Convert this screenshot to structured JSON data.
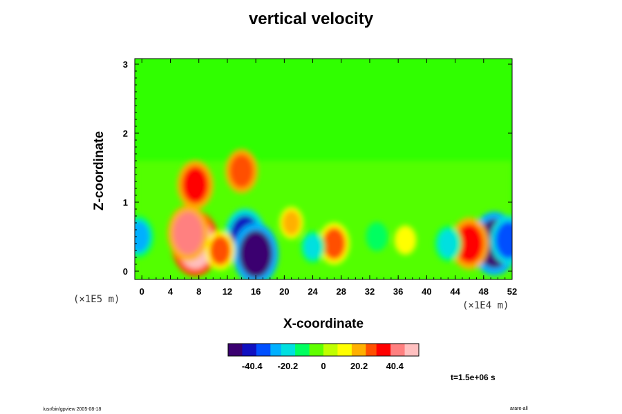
{
  "chart_data": {
    "type": "heatmap",
    "title": "vertical velocity",
    "xlabel": "X-coordinate",
    "ylabel": "Z-coordinate",
    "x_ticks": [
      "0",
      "4",
      "8",
      "12",
      "16",
      "20",
      "24",
      "28",
      "32",
      "36",
      "40",
      "44",
      "48",
      "52"
    ],
    "y_ticks": [
      "0",
      "1",
      "2",
      "3"
    ],
    "x_scale_label": "(×1E4 m)",
    "y_scale_label": "(×1E5 m)",
    "xlim": [
      -1,
      52
    ],
    "ylim": [
      -0.12,
      3.08
    ],
    "colorbar": {
      "ticks": [
        "-40.4",
        "-20.2",
        "0",
        "20.2",
        "40.4"
      ],
      "range": [
        -54,
        54
      ],
      "colors": [
        "#3b0070",
        "#1010c0",
        "#0050ff",
        "#00b0ff",
        "#00e0e0",
        "#00ff60",
        "#60ff00",
        "#c0ff00",
        "#ffff00",
        "#ffb000",
        "#ff5000",
        "#ff0000",
        "#ff8080",
        "#ffc0c0"
      ]
    },
    "annotation": "t=1.5e+06 s",
    "features": [
      {
        "x": 7.5,
        "z": 0.4,
        "value": 52
      },
      {
        "x": 6.5,
        "z": 0.55,
        "value": 42
      },
      {
        "x": 14.5,
        "z": 0.5,
        "value": -42
      },
      {
        "x": 16,
        "z": 0.25,
        "value": -48
      },
      {
        "x": 7.5,
        "z": 1.25,
        "value": 35
      },
      {
        "x": 14,
        "z": 1.45,
        "value": 30
      },
      {
        "x": 49.5,
        "z": 0.4,
        "value": -50
      },
      {
        "x": 51.5,
        "z": 0.45,
        "value": -35
      },
      {
        "x": 46,
        "z": 0.4,
        "value": 38
      },
      {
        "x": -0.5,
        "z": 0.5,
        "value": -28
      },
      {
        "x": 27,
        "z": 0.4,
        "value": 28
      },
      {
        "x": 37,
        "z": 0.45,
        "value": 15
      },
      {
        "x": 21,
        "z": 0.7,
        "value": 18
      },
      {
        "x": 43,
        "z": 0.4,
        "value": -22
      },
      {
        "x": 33,
        "z": 0.5,
        "value": -15
      },
      {
        "x": 24,
        "z": 0.35,
        "value": -18
      },
      {
        "x": 11,
        "z": 0.3,
        "value": 25
      }
    ]
  },
  "footer": {
    "left": "/usr/bin/gpview 2005-08-18",
    "right": "arare-all"
  }
}
